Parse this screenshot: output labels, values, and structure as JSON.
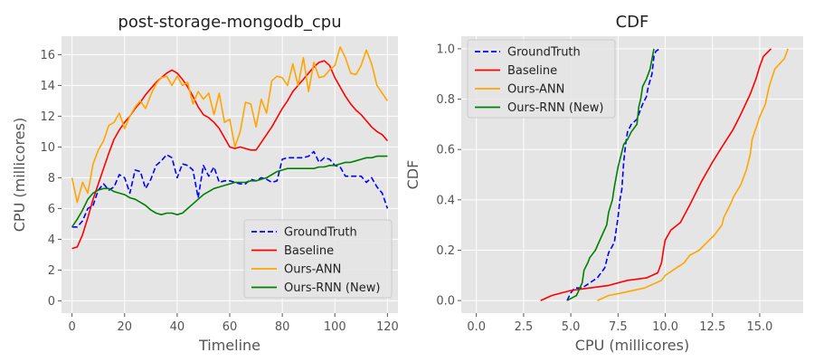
{
  "chart_data": [
    {
      "type": "line",
      "title": "post-storage-mongodb_cpu",
      "xlabel": "Timeline",
      "ylabel": "CPU (millicores)",
      "xlim": [
        -4,
        124
      ],
      "ylim": [
        -0.8,
        17.2
      ],
      "xticks": [
        0,
        20,
        40,
        60,
        80,
        100,
        120
      ],
      "yticks": [
        0,
        2,
        4,
        6,
        8,
        10,
        12,
        14,
        16
      ],
      "xtick_labels": [
        "0",
        "20",
        "40",
        "60",
        "80",
        "100",
        "120"
      ],
      "ytick_labels": [
        "0",
        "2",
        "4",
        "6",
        "8",
        "10",
        "12",
        "14",
        "16"
      ],
      "grid": true,
      "legend_position": "lower-right",
      "series": [
        {
          "name": "GroundTruth",
          "color": "#0000ff",
          "dash": "dashed",
          "x": [
            0,
            2,
            4,
            6,
            8,
            10,
            12,
            14,
            16,
            18,
            20,
            22,
            24,
            26,
            28,
            30,
            32,
            34,
            36,
            38,
            40,
            42,
            44,
            46,
            48,
            50,
            52,
            54,
            56,
            58,
            60,
            62,
            64,
            66,
            68,
            70,
            72,
            74,
            76,
            78,
            80,
            82,
            84,
            86,
            88,
            90,
            92,
            94,
            96,
            98,
            100,
            102,
            104,
            106,
            108,
            110,
            112,
            114,
            116,
            118,
            120
          ],
          "y": [
            4.8,
            4.8,
            5.2,
            6.0,
            6.2,
            7.2,
            7.6,
            7.2,
            7.4,
            8.2,
            8.0,
            7.0,
            8.5,
            8.4,
            7.3,
            7.9,
            8.8,
            9.1,
            9.5,
            9.3,
            8.0,
            8.9,
            8.8,
            8.5,
            6.7,
            8.8,
            8.1,
            8.7,
            7.7,
            7.8,
            7.8,
            7.7,
            7.6,
            7.6,
            7.9,
            7.8,
            8.0,
            7.9,
            7.7,
            7.8,
            9.2,
            9.3,
            9.3,
            9.3,
            9.3,
            9.4,
            9.7,
            9.0,
            9.3,
            9.2,
            8.8,
            8.7,
            8.1,
            8.1,
            8.1,
            8.1,
            7.7,
            8.0,
            7.4,
            7.0,
            6.0
          ]
        },
        {
          "name": "Baseline",
          "color": "#ff0000",
          "dash": "solid",
          "x": [
            0,
            2,
            4,
            6,
            8,
            10,
            12,
            14,
            16,
            18,
            20,
            22,
            24,
            26,
            28,
            30,
            32,
            34,
            36,
            38,
            40,
            42,
            44,
            46,
            48,
            50,
            52,
            54,
            56,
            58,
            60,
            62,
            64,
            66,
            68,
            70,
            72,
            74,
            76,
            78,
            80,
            82,
            84,
            86,
            88,
            90,
            92,
            94,
            96,
            98,
            100,
            102,
            104,
            106,
            108,
            110,
            112,
            114,
            116,
            118,
            120
          ],
          "y": [
            3.4,
            3.5,
            4.3,
            5.4,
            6.6,
            7.6,
            8.6,
            9.6,
            10.5,
            11.1,
            11.6,
            12.0,
            12.5,
            12.9,
            13.4,
            13.8,
            14.2,
            14.5,
            14.8,
            15.0,
            14.8,
            14.4,
            13.9,
            13.3,
            12.6,
            12.1,
            11.9,
            11.6,
            11.2,
            10.6,
            10.0,
            9.9,
            10.0,
            9.9,
            9.8,
            9.8,
            10.3,
            10.8,
            11.3,
            11.9,
            12.5,
            13.0,
            13.6,
            14.0,
            14.4,
            14.8,
            15.2,
            15.5,
            15.6,
            15.3,
            14.5,
            13.9,
            13.3,
            12.8,
            12.4,
            12.1,
            11.7,
            11.3,
            11.0,
            10.8,
            10.4
          ]
        },
        {
          "name": "Ours-ANN",
          "color": "#ffa500",
          "dash": "solid",
          "x": [
            0,
            2,
            4,
            6,
            8,
            10,
            12,
            14,
            16,
            18,
            20,
            22,
            24,
            26,
            28,
            30,
            32,
            34,
            36,
            38,
            40,
            42,
            44,
            46,
            48,
            50,
            52,
            54,
            56,
            58,
            60,
            62,
            64,
            66,
            68,
            70,
            72,
            74,
            76,
            78,
            80,
            82,
            84,
            86,
            88,
            90,
            92,
            94,
            96,
            98,
            100,
            102,
            104,
            106,
            108,
            110,
            112,
            114,
            116,
            118,
            120
          ],
          "y": [
            8.0,
            6.4,
            7.7,
            7.0,
            8.9,
            9.8,
            10.4,
            11.4,
            11.6,
            12.2,
            11.2,
            12.0,
            12.6,
            13.0,
            12.5,
            13.4,
            14.1,
            14.5,
            14.6,
            14.0,
            14.6,
            14.0,
            14.2,
            12.8,
            13.6,
            13.1,
            13.5,
            12.1,
            13.5,
            11.6,
            11.8,
            10.0,
            11.0,
            12.9,
            12.8,
            11.3,
            13.1,
            12.2,
            14.3,
            14.6,
            14.5,
            14.0,
            15.4,
            14.0,
            15.8,
            13.6,
            15.5,
            14.5,
            14.6,
            15.0,
            15.3,
            16.5,
            15.8,
            14.8,
            14.7,
            15.3,
            16.3,
            15.4,
            14.0,
            13.5,
            13.0
          ]
        },
        {
          "name": "Ours-RNN (New)",
          "color": "#008000",
          "dash": "solid",
          "x": [
            0,
            2,
            4,
            6,
            8,
            10,
            12,
            14,
            16,
            18,
            20,
            22,
            24,
            26,
            28,
            30,
            32,
            34,
            36,
            38,
            40,
            42,
            44,
            46,
            48,
            50,
            52,
            54,
            56,
            58,
            60,
            62,
            64,
            66,
            68,
            70,
            72,
            74,
            76,
            78,
            80,
            82,
            84,
            86,
            88,
            90,
            92,
            94,
            96,
            98,
            100,
            102,
            104,
            106,
            108,
            110,
            112,
            114,
            116,
            118,
            120
          ],
          "y": [
            4.8,
            5.3,
            5.9,
            6.6,
            7.0,
            7.2,
            7.3,
            7.3,
            7.1,
            7.0,
            6.9,
            6.7,
            6.6,
            6.4,
            6.2,
            5.9,
            5.7,
            5.6,
            5.7,
            5.7,
            5.6,
            5.7,
            6.0,
            6.3,
            6.6,
            6.9,
            7.1,
            7.3,
            7.4,
            7.5,
            7.6,
            7.7,
            7.7,
            7.7,
            7.8,
            7.8,
            7.9,
            8.0,
            8.2,
            8.4,
            8.5,
            8.6,
            8.6,
            8.6,
            8.6,
            8.6,
            8.6,
            8.7,
            8.7,
            8.8,
            8.8,
            8.9,
            9.0,
            9.0,
            9.1,
            9.2,
            9.3,
            9.3,
            9.4,
            9.4,
            9.4
          ]
        }
      ]
    },
    {
      "type": "line",
      "title": "CDF",
      "xlabel": "CPU (millicores)",
      "ylabel": "CDF",
      "xlim": [
        -0.8,
        17.3
      ],
      "ylim": [
        -0.05,
        1.05
      ],
      "xticks": [
        0,
        2.5,
        5,
        7.5,
        10,
        12.5,
        15
      ],
      "yticks": [
        0,
        0.2,
        0.4,
        0.6,
        0.8,
        1.0
      ],
      "xtick_labels": [
        "0.0",
        "2.5",
        "5.0",
        "7.5",
        "10.0",
        "12.5",
        "15.0"
      ],
      "ytick_labels": [
        "0.0",
        "0.2",
        "0.4",
        "0.6",
        "0.8",
        "1.0"
      ],
      "grid": true,
      "legend_position": "top-left",
      "series": [
        {
          "name": "GroundTruth",
          "color": "#0000ff",
          "dash": "dashed",
          "x": [
            4.8,
            5.0,
            5.2,
            5.6,
            6.0,
            6.4,
            6.8,
            7.0,
            7.3,
            7.5,
            7.6,
            7.7,
            7.8,
            7.9,
            8.0,
            8.2,
            8.5,
            8.8,
            9.0,
            9.1,
            9.3,
            9.4,
            9.5,
            9.7
          ],
          "y": [
            0.0,
            0.03,
            0.05,
            0.05,
            0.07,
            0.09,
            0.13,
            0.19,
            0.23,
            0.33,
            0.4,
            0.44,
            0.55,
            0.62,
            0.67,
            0.7,
            0.72,
            0.78,
            0.81,
            0.85,
            0.9,
            0.97,
            0.99,
            1.0
          ]
        },
        {
          "name": "Baseline",
          "color": "#ff0000",
          "dash": "solid",
          "x": [
            3.4,
            4.0,
            5.0,
            6.0,
            7.0,
            8.0,
            9.0,
            9.6,
            9.8,
            9.9,
            10.0,
            10.3,
            10.8,
            11.3,
            11.9,
            12.5,
            13.0,
            13.6,
            14.0,
            14.5,
            14.8,
            15.0,
            15.2,
            15.6
          ],
          "y": [
            0.0,
            0.02,
            0.04,
            0.05,
            0.06,
            0.08,
            0.09,
            0.11,
            0.15,
            0.2,
            0.24,
            0.28,
            0.31,
            0.38,
            0.47,
            0.55,
            0.61,
            0.68,
            0.74,
            0.82,
            0.88,
            0.93,
            0.97,
            1.0
          ]
        },
        {
          "name": "Ours-ANN",
          "color": "#ffa500",
          "dash": "solid",
          "x": [
            6.4,
            7.0,
            7.7,
            8.9,
            9.8,
            10.0,
            10.4,
            11.0,
            11.3,
            11.8,
            12.2,
            12.6,
            13.0,
            13.1,
            13.5,
            13.6,
            14.0,
            14.3,
            14.5,
            14.6,
            15.0,
            15.3,
            15.5,
            15.8,
            16.3,
            16.5
          ],
          "y": [
            0.0,
            0.02,
            0.03,
            0.05,
            0.08,
            0.1,
            0.12,
            0.15,
            0.18,
            0.2,
            0.23,
            0.26,
            0.3,
            0.33,
            0.39,
            0.41,
            0.46,
            0.52,
            0.58,
            0.64,
            0.73,
            0.78,
            0.85,
            0.92,
            0.96,
            1.0
          ]
        },
        {
          "name": "Ours-RNN (New)",
          "color": "#008000",
          "dash": "solid",
          "x": [
            4.8,
            5.3,
            5.6,
            5.7,
            5.9,
            6.0,
            6.3,
            6.6,
            6.9,
            7.0,
            7.2,
            7.3,
            7.5,
            7.7,
            7.8,
            8.0,
            8.2,
            8.5,
            8.6,
            8.7,
            8.8,
            9.0,
            9.2,
            9.3,
            9.4
          ],
          "y": [
            0.0,
            0.02,
            0.07,
            0.12,
            0.15,
            0.17,
            0.2,
            0.25,
            0.3,
            0.35,
            0.4,
            0.45,
            0.53,
            0.59,
            0.62,
            0.64,
            0.67,
            0.7,
            0.77,
            0.8,
            0.85,
            0.88,
            0.92,
            0.96,
            1.0
          ]
        }
      ]
    }
  ]
}
